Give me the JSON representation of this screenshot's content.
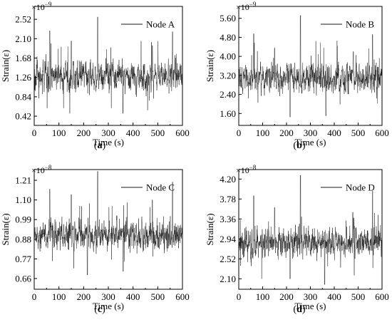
{
  "chart_data": [
    {
      "type": "line",
      "panel_label": "(a)",
      "panel_letter": "a",
      "xlabel": "Time (s)",
      "ylabel": "Strain(ε)",
      "exponent": {
        "base": "×10",
        "power": "−9"
      },
      "xlim": [
        0,
        600
      ],
      "ylim": [
        0.22,
        2.8
      ],
      "xticks": [
        "0",
        "100",
        "200",
        "300",
        "400",
        "500",
        "600"
      ],
      "yticks": [
        "0.42",
        "0.84",
        "1.26",
        "1.68",
        "2.10",
        "2.52"
      ],
      "series": [
        {
          "name": "Node A",
          "color": "#1a1a1a",
          "mean": 1.29,
          "amplitude": 0.26,
          "peaks": [
            [
              63,
              2.27
            ],
            [
              257,
              2.57
            ],
            [
              560,
              2.25
            ],
            [
              150,
              2.05
            ],
            [
              478,
              1.95
            ],
            [
              359,
              0.48
            ]
          ]
        }
      ],
      "legend_position": "top-right"
    },
    {
      "type": "line",
      "panel_label": "(b)",
      "panel_letter": "b",
      "xlabel": "Time (s)",
      "ylabel": "Strain(ε)",
      "exponent": {
        "base": "×10",
        "power": "−9"
      },
      "xlim": [
        0,
        600
      ],
      "ylim": [
        1.1,
        6.1
      ],
      "xticks": [
        "0",
        "100",
        "200",
        "300",
        "400",
        "500",
        "600"
      ],
      "yticks": [
        "1.60",
        "2.40",
        "3.20",
        "4.00",
        "4.80",
        "5.60"
      ],
      "series": [
        {
          "name": "Node B",
          "color": "#1a1a1a",
          "mean": 3.1,
          "amplitude": 0.5,
          "peaks": [
            [
              63,
              4.95
            ],
            [
              258,
              5.72
            ],
            [
              560,
              4.92
            ],
            [
              150,
              4.35
            ],
            [
              480,
              4.2
            ],
            [
              215,
              1.45
            ],
            [
              365,
              1.5
            ]
          ]
        }
      ],
      "legend_position": "top-right"
    },
    {
      "type": "line",
      "panel_label": "(c)",
      "panel_letter": "c",
      "xlabel": "Time (s)",
      "ylabel": "Strain(ε)",
      "exponent": {
        "base": "×10",
        "power": "−8"
      },
      "xlim": [
        0,
        600
      ],
      "ylim": [
        0.6,
        1.27
      ],
      "xticks": [
        "0",
        "100",
        "200",
        "300",
        "400",
        "500",
        "600"
      ],
      "yticks": [
        "0.66",
        "0.77",
        "0.88",
        "0.99",
        "1.10",
        "1.21"
      ],
      "series": [
        {
          "name": "Node C",
          "color": "#1a1a1a",
          "mean": 0.905,
          "amplitude": 0.065,
          "peaks": [
            [
              63,
              1.16
            ],
            [
              257,
              1.26
            ],
            [
              560,
              1.2
            ],
            [
              150,
              1.13
            ],
            [
              478,
              1.1
            ],
            [
              215,
              0.68
            ],
            [
              360,
              0.7
            ]
          ]
        }
      ],
      "legend_position": "top-right"
    },
    {
      "type": "line",
      "panel_label": "(d)",
      "panel_letter": "d",
      "xlabel": "Time (s)",
      "ylabel": "Strain(ε)",
      "exponent": {
        "base": "×10",
        "power": "−8"
      },
      "xlim": [
        0,
        600
      ],
      "ylim": [
        1.88,
        4.4
      ],
      "xticks": [
        "0",
        "100",
        "200",
        "300",
        "400",
        "500",
        "600"
      ],
      "yticks": [
        "2.10",
        "2.52",
        "2.94",
        "3.36",
        "3.78",
        "4.20"
      ],
      "series": [
        {
          "name": "Node D",
          "color": "#1a1a1a",
          "mean": 2.86,
          "amplitude": 0.25,
          "peaks": [
            [
              63,
              3.85
            ],
            [
              258,
              4.28
            ],
            [
              560,
              3.95
            ],
            [
              150,
              3.6
            ],
            [
              478,
              3.5
            ],
            [
              360,
              1.98
            ],
            [
              215,
              2.1
            ]
          ]
        }
      ],
      "legend_position": "top-right"
    }
  ]
}
